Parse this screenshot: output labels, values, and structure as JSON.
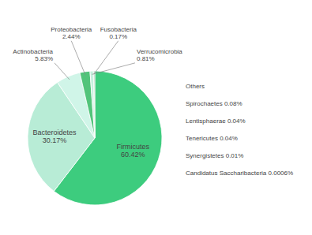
{
  "chart_data": {
    "type": "pie",
    "categories": [
      "Firmicutes",
      "Bacteroidetes",
      "Actinobacteria",
      "Proteobacteria",
      "Verrucomicrobia",
      "Fusobacteria",
      "Others"
    ],
    "values": [
      60.42,
      30.17,
      5.83,
      2.44,
      0.81,
      0.17,
      0.16
    ],
    "value_labels": [
      "60.42%",
      "30.17%",
      "5.83%",
      "2.44%",
      "0.81%",
      "0.17%",
      null
    ],
    "colors": [
      "#3dcc7e",
      "#b8ecd6",
      "#d0f5e8",
      "#52c47a",
      "#c5f0de",
      "#6dcf95",
      "#1e6b38"
    ],
    "data_labels": true,
    "annotations": [
      "Spirochaetes 0.08%",
      "Lentisphaerae 0.04%",
      "Tenericutes 0.04%",
      "Synergistetes 0.01%",
      "Candidatus Saccharibacteria 0.0006%"
    ]
  }
}
